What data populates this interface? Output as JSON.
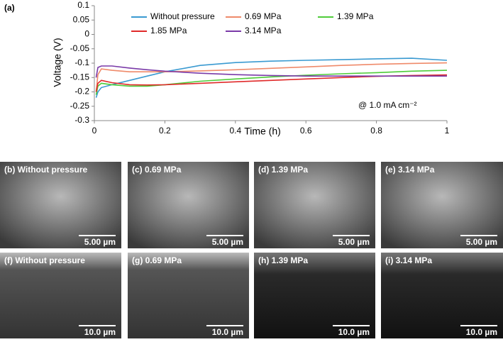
{
  "chart_data": {
    "type": "line",
    "panel_label": "(a)",
    "x_label": "Time  (h)",
    "y_label": "Voltage (V)",
    "annotation": "@ 1.0 mA cm⁻²",
    "xlim": [
      0,
      1
    ],
    "xticks": [
      0,
      0.2,
      0.4,
      0.6,
      0.8,
      1
    ],
    "ylim": [
      -0.3,
      0.1
    ],
    "yticks": [
      0.1,
      0.05,
      0,
      -0.05,
      -0.1,
      -0.15,
      -0.2,
      -0.25,
      -0.3
    ],
    "x": [
      0.005,
      0.01,
      0.02,
      0.05,
      0.1,
      0.15,
      0.2,
      0.3,
      0.4,
      0.5,
      0.6,
      0.7,
      0.8,
      0.9,
      1.0
    ],
    "series": [
      {
        "name": "Without pressure",
        "color": "#3a9ad1",
        "values": [
          -0.22,
          -0.2,
          -0.185,
          -0.175,
          -0.16,
          -0.145,
          -0.13,
          -0.108,
          -0.098,
          -0.093,
          -0.09,
          -0.088,
          -0.085,
          -0.083,
          -0.09
        ]
      },
      {
        "name": "0.69 MPa",
        "color": "#ef8a6a",
        "values": [
          -0.2,
          -0.14,
          -0.12,
          -0.125,
          -0.13,
          -0.13,
          -0.13,
          -0.127,
          -0.123,
          -0.118,
          -0.113,
          -0.108,
          -0.104,
          -0.101,
          -0.099
        ]
      },
      {
        "name": "1.39 MPa",
        "color": "#4fcc3a",
        "values": [
          -0.21,
          -0.18,
          -0.17,
          -0.175,
          -0.18,
          -0.18,
          -0.175,
          -0.163,
          -0.155,
          -0.148,
          -0.142,
          -0.137,
          -0.133,
          -0.128,
          -0.125
        ]
      },
      {
        "name": "1.85 MPa",
        "color": "#e02a2a",
        "values": [
          -0.2,
          -0.17,
          -0.16,
          -0.168,
          -0.175,
          -0.176,
          -0.175,
          -0.17,
          -0.165,
          -0.16,
          -0.155,
          -0.15,
          -0.146,
          -0.143,
          -0.141
        ]
      },
      {
        "name": "3.14 MPa",
        "color": "#7a3aa8",
        "values": [
          -0.15,
          -0.115,
          -0.11,
          -0.11,
          -0.117,
          -0.123,
          -0.128,
          -0.135,
          -0.14,
          -0.143,
          -0.145,
          -0.145,
          -0.145,
          -0.145,
          -0.145
        ]
      }
    ]
  },
  "panels": [
    {
      "label": "(b) Without pressure",
      "scale": "5.00 µm"
    },
    {
      "label": "(c) 0.69 MPa",
      "scale": "5.00 µm"
    },
    {
      "label": "(d) 1.39 MPa",
      "scale": "5.00 µm"
    },
    {
      "label": "(e) 3.14 MPa",
      "scale": "5.00 µm"
    },
    {
      "label": "(f) Without pressure",
      "scale": "10.0 µm"
    },
    {
      "label": "(g) 0.69 MPa",
      "scale": "10.0 µm"
    },
    {
      "label": "(h) 1.39 MPa",
      "scale": "10.0 µm"
    },
    {
      "label": "(i) 3.14 MPa",
      "scale": "10.0 µm"
    }
  ]
}
